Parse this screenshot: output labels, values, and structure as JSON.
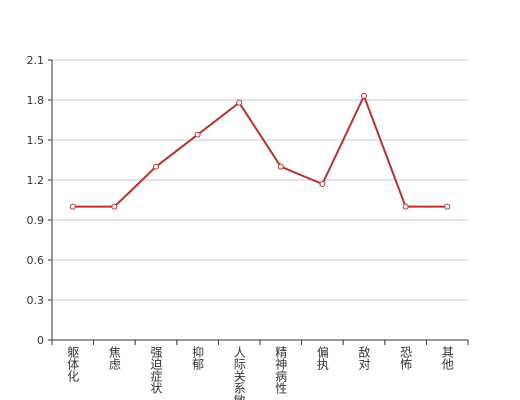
{
  "chart_data": {
    "type": "line",
    "categories": [
      "躯体化",
      "焦虑",
      "强迫症状",
      "抑郁",
      "人际关系敏感",
      "精神病性",
      "偏执",
      "敌对",
      "恐怖",
      "其他"
    ],
    "series": [
      {
        "color": "#b83232",
        "values": [
          1.0,
          1.0,
          1.3,
          1.54,
          1.78,
          1.3,
          1.17,
          1.83,
          1.0,
          1.0
        ]
      }
    ],
    "ylim": [
      0,
      2.1
    ],
    "yticks": [
      0,
      0.3,
      0.6,
      0.9,
      1.2,
      1.5,
      1.8,
      2.1
    ],
    "grid": true
  }
}
